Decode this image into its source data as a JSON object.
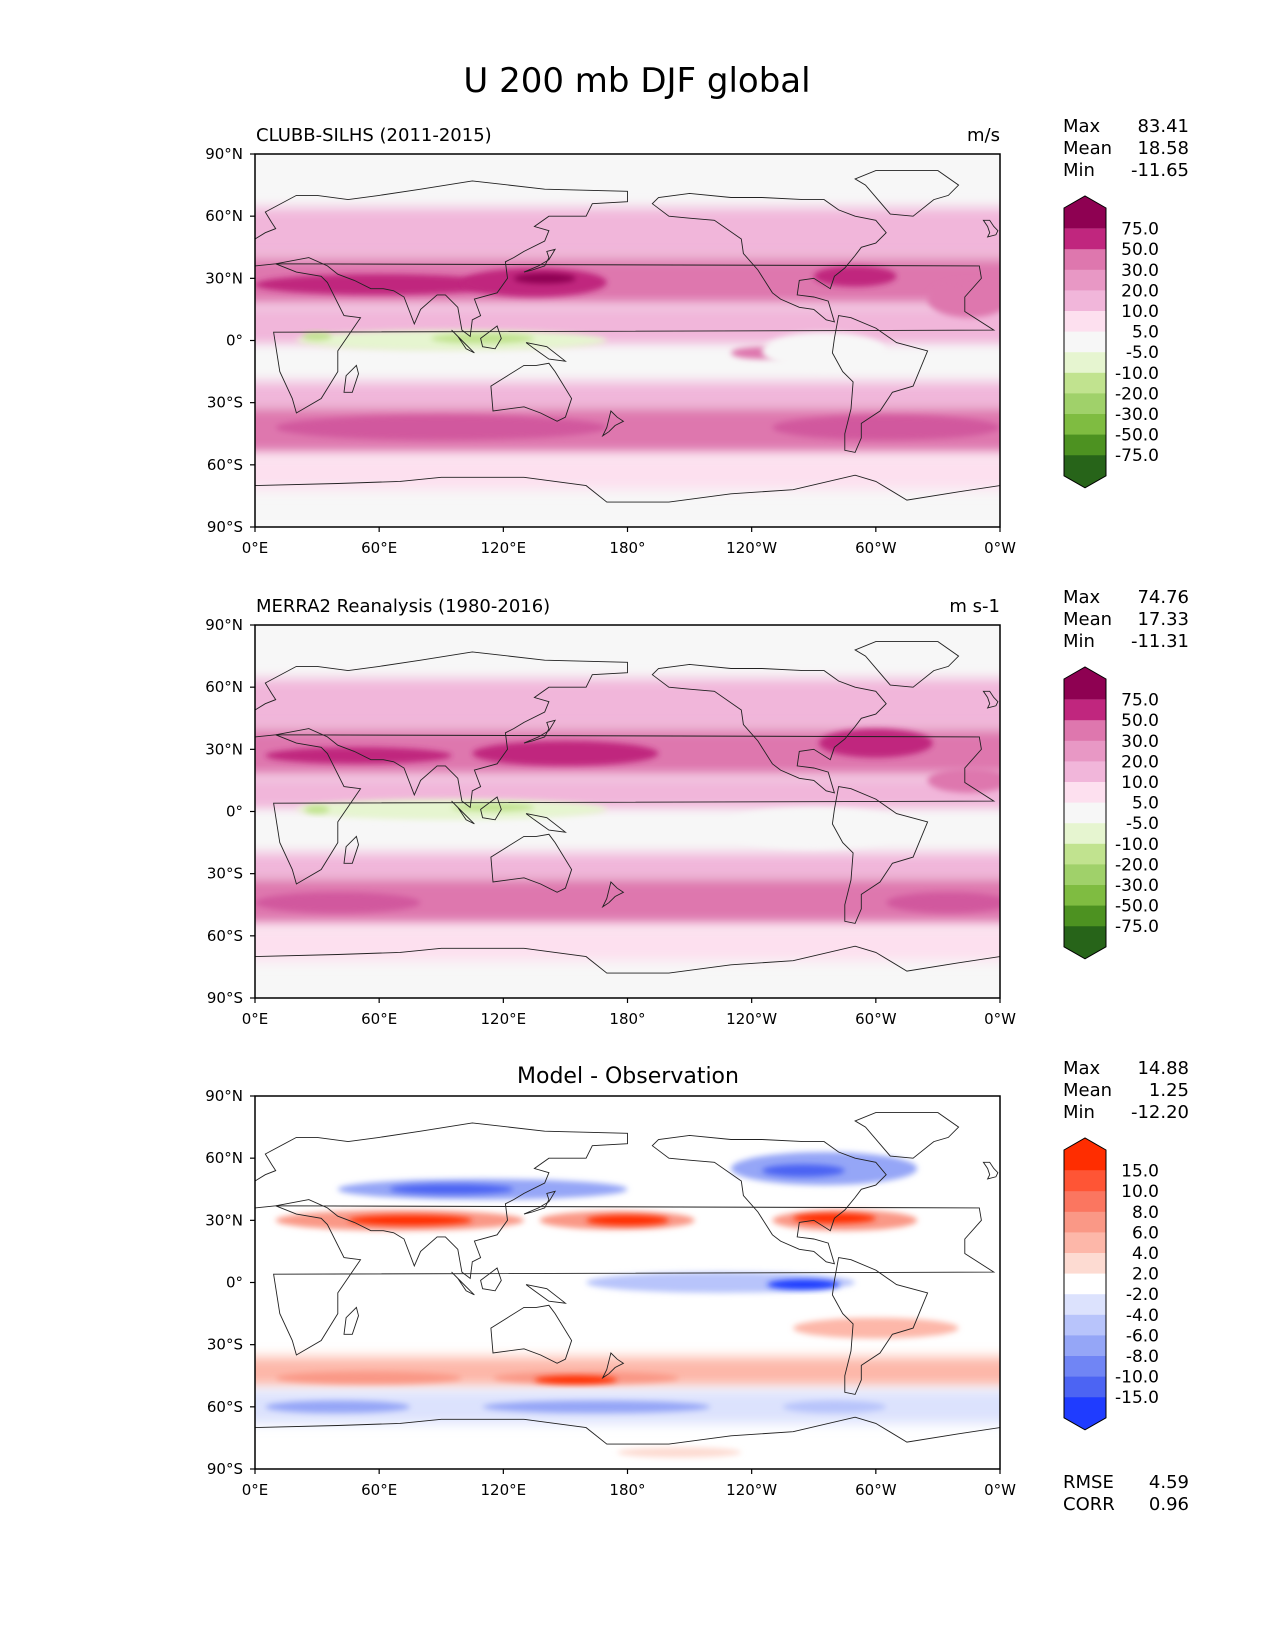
{
  "figure_title": "U 200 mb DJF global",
  "chart_data": [
    {
      "type": "heatmap",
      "panel": "test",
      "title_left": "CLUBB-SILHS (2011-2015)",
      "title_right": "m/s",
      "stats": [
        {
          "label": "Max",
          "value": "83.41"
        },
        {
          "label": "Mean",
          "value": "18.58"
        },
        {
          "label": "Min",
          "value": "-11.65"
        }
      ],
      "colorbar": {
        "levels": [
          "75.0",
          "50.0",
          "30.0",
          "20.0",
          "10.0",
          "5.0",
          "-5.0",
          "-10.0",
          "-20.0",
          "-30.0",
          "-50.0",
          "-75.0"
        ],
        "colors": [
          "#8e0152",
          "#c0267e",
          "#de77ae",
          "#e898c5",
          "#f1b6da",
          "#fde0ef",
          "#f7f7f7",
          "#e6f5d0",
          "#c1e38f",
          "#a0d16a",
          "#7fbc41",
          "#4d9221",
          "#276419"
        ]
      },
      "x_ticks": [
        "0°E",
        "60°E",
        "120°E",
        "180°",
        "120°W",
        "60°W",
        "0°W"
      ],
      "y_ticks": [
        "90°N",
        "60°N",
        "30°N",
        "0°",
        "30°S",
        "60°S",
        "90°S"
      ],
      "xlim": [
        0,
        360
      ],
      "ylim": [
        -90,
        90
      ],
      "background": "#f7f7f7",
      "bands": [
        {
          "lat": [
            60,
            90
          ],
          "color": "#f7f7f7"
        },
        {
          "lat": [
            40,
            64
          ],
          "color": "#f1b6da"
        },
        {
          "lat": [
            17,
            40
          ],
          "color": "#de77ae"
        },
        {
          "lat": [
            -3,
            17
          ],
          "color": "#f1b6da"
        },
        {
          "lat": [
            -20,
            -3
          ],
          "color": "#f7f7f7"
        },
        {
          "lat": [
            -32,
            -20
          ],
          "color": "#f1b6da"
        },
        {
          "lat": [
            -55,
            -32
          ],
          "color": "#de77ae"
        },
        {
          "lat": [
            -72,
            -55
          ],
          "color": "#fde0ef"
        }
      ],
      "blobs": [
        {
          "lon": 60,
          "lat": 27,
          "w": 120,
          "h": 10,
          "color": "#c0267e"
        },
        {
          "lon": 135,
          "lat": 28,
          "w": 70,
          "h": 14,
          "color": "#c0267e"
        },
        {
          "lon": 140,
          "lat": 30,
          "w": 30,
          "h": 5,
          "color": "#8e0152"
        },
        {
          "lon": 290,
          "lat": 31,
          "w": 40,
          "h": 10,
          "color": "#c0267e"
        },
        {
          "lon": 345,
          "lat": 20,
          "w": 40,
          "h": 18,
          "color": "#de77ae"
        },
        {
          "lon": 95,
          "lat": 0,
          "w": 150,
          "h": 10,
          "color": "#e6f5d0"
        },
        {
          "lon": 110,
          "lat": 1,
          "w": 50,
          "h": 5,
          "color": "#c1e38f"
        },
        {
          "lon": 30,
          "lat": 2,
          "w": 14,
          "h": 4,
          "color": "#c1e38f"
        },
        {
          "lon": 245,
          "lat": -6,
          "w": 30,
          "h": 6,
          "color": "#de77ae"
        },
        {
          "lon": 275,
          "lat": -5,
          "w": 60,
          "h": 18,
          "color": "#f7f7f7"
        },
        {
          "lon": 90,
          "lat": -42,
          "w": 160,
          "h": 12,
          "color": "#d1589e"
        },
        {
          "lon": 305,
          "lat": -42,
          "w": 110,
          "h": 12,
          "color": "#d1589e"
        }
      ]
    },
    {
      "type": "heatmap",
      "panel": "reference",
      "title_left": "MERRA2 Reanalysis (1980-2016)",
      "title_right": "m s-1",
      "stats": [
        {
          "label": "Max",
          "value": "74.76"
        },
        {
          "label": "Mean",
          "value": "17.33"
        },
        {
          "label": "Min",
          "value": "-11.31"
        }
      ],
      "colorbar": {
        "levels": [
          "75.0",
          "50.0",
          "30.0",
          "20.0",
          "10.0",
          "5.0",
          "-5.0",
          "-10.0",
          "-20.0",
          "-30.0",
          "-50.0",
          "-75.0"
        ],
        "colors": [
          "#8e0152",
          "#c0267e",
          "#de77ae",
          "#e898c5",
          "#f1b6da",
          "#fde0ef",
          "#f7f7f7",
          "#e6f5d0",
          "#c1e38f",
          "#a0d16a",
          "#7fbc41",
          "#4d9221",
          "#276419"
        ]
      },
      "x_ticks": [
        "0°E",
        "60°E",
        "120°E",
        "180°",
        "120°W",
        "60°W",
        "0°W"
      ],
      "y_ticks": [
        "90°N",
        "60°N",
        "30°N",
        "0°",
        "30°S",
        "60°S",
        "90°S"
      ],
      "xlim": [
        0,
        360
      ],
      "ylim": [
        -90,
        90
      ],
      "background": "#f7f7f7",
      "bands": [
        {
          "lat": [
            62,
            90
          ],
          "color": "#f7f7f7"
        },
        {
          "lat": [
            40,
            64
          ],
          "color": "#f1b6da"
        },
        {
          "lat": [
            17,
            40
          ],
          "color": "#de77ae"
        },
        {
          "lat": [
            0,
            17
          ],
          "color": "#f1b6da"
        },
        {
          "lat": [
            -20,
            0
          ],
          "color": "#f7f7f7"
        },
        {
          "lat": [
            -32,
            -20
          ],
          "color": "#f1b6da"
        },
        {
          "lat": [
            -55,
            -32
          ],
          "color": "#de77ae"
        },
        {
          "lat": [
            -72,
            -55
          ],
          "color": "#fde0ef"
        }
      ],
      "blobs": [
        {
          "lon": 50,
          "lat": 27,
          "w": 90,
          "h": 8,
          "color": "#c0267e"
        },
        {
          "lon": 150,
          "lat": 28,
          "w": 90,
          "h": 12,
          "color": "#c0267e"
        },
        {
          "lon": 300,
          "lat": 33,
          "w": 55,
          "h": 14,
          "color": "#c0267e"
        },
        {
          "lon": 345,
          "lat": 15,
          "w": 40,
          "h": 12,
          "color": "#de77ae"
        },
        {
          "lon": 95,
          "lat": 1,
          "w": 150,
          "h": 10,
          "color": "#e6f5d0"
        },
        {
          "lon": 115,
          "lat": 2,
          "w": 40,
          "h": 4,
          "color": "#c1e38f"
        },
        {
          "lon": 30,
          "lat": 1,
          "w": 12,
          "h": 4,
          "color": "#c1e38f"
        },
        {
          "lon": 270,
          "lat": -8,
          "w": 90,
          "h": 20,
          "color": "#f7f7f7"
        },
        {
          "lon": 40,
          "lat": -44,
          "w": 80,
          "h": 10,
          "color": "#d1589e"
        },
        {
          "lon": 335,
          "lat": -44,
          "w": 60,
          "h": 10,
          "color": "#d1589e"
        }
      ]
    },
    {
      "type": "heatmap",
      "panel": "difference",
      "title_center": "Model - Observation",
      "stats": [
        {
          "label": "Max",
          "value": "14.88"
        },
        {
          "label": "Mean",
          "value": "1.25"
        },
        {
          "label": "Min",
          "value": "-12.20"
        }
      ],
      "extra_stats": [
        {
          "label": "RMSE",
          "value": "4.59"
        },
        {
          "label": "CORR",
          "value": "0.96"
        }
      ],
      "colorbar": {
        "levels": [
          "15.0",
          "10.0",
          "8.0",
          "6.0",
          "4.0",
          "2.0",
          "-2.0",
          "-4.0",
          "-6.0",
          "-8.0",
          "-10.0",
          "-15.0"
        ],
        "colors": [
          "#ff2d00",
          "#ff5535",
          "#fb7660",
          "#fa9886",
          "#fdb7a9",
          "#fddbd2",
          "#ffffff",
          "#dce2fd",
          "#b8c4fb",
          "#95a6f7",
          "#7085f5",
          "#4c64f3",
          "#1f3cff"
        ]
      },
      "x_ticks": [
        "0°E",
        "60°E",
        "120°E",
        "180°",
        "120°W",
        "60°W",
        "0°W"
      ],
      "y_ticks": [
        "90°N",
        "60°N",
        "30°N",
        "0°",
        "30°S",
        "60°S",
        "90°S"
      ],
      "xlim": [
        0,
        360
      ],
      "ylim": [
        -90,
        90
      ],
      "background": "#ffffff",
      "bands": [
        {
          "lat": [
            -50,
            -36
          ],
          "color": "#fdb7a9"
        },
        {
          "lat": [
            -68,
            -52
          ],
          "color": "#dce2fd"
        }
      ],
      "blobs": [
        {
          "lon": 110,
          "lat": 45,
          "w": 140,
          "h": 10,
          "color": "#95a6f7"
        },
        {
          "lon": 95,
          "lat": 45,
          "w": 60,
          "h": 5,
          "color": "#4c64f3"
        },
        {
          "lon": 275,
          "lat": 55,
          "w": 90,
          "h": 16,
          "color": "#95a6f7"
        },
        {
          "lon": 265,
          "lat": 54,
          "w": 40,
          "h": 6,
          "color": "#4c64f3"
        },
        {
          "lon": 70,
          "lat": 30,
          "w": 120,
          "h": 10,
          "color": "#fa9886"
        },
        {
          "lon": 75,
          "lat": 30,
          "w": 60,
          "h": 5,
          "color": "#ff2d00"
        },
        {
          "lon": 175,
          "lat": 30,
          "w": 75,
          "h": 9,
          "color": "#fa9886"
        },
        {
          "lon": 180,
          "lat": 30,
          "w": 40,
          "h": 5,
          "color": "#ff2d00"
        },
        {
          "lon": 285,
          "lat": 30,
          "w": 70,
          "h": 10,
          "color": "#fa9886"
        },
        {
          "lon": 280,
          "lat": 31,
          "w": 40,
          "h": 5,
          "color": "#ff2d00"
        },
        {
          "lon": 225,
          "lat": 0,
          "w": 130,
          "h": 10,
          "color": "#b8c4fb"
        },
        {
          "lon": 265,
          "lat": -1,
          "w": 35,
          "h": 5,
          "color": "#1f3cff"
        },
        {
          "lon": 300,
          "lat": -22,
          "w": 80,
          "h": 10,
          "color": "#fdb7a9"
        },
        {
          "lon": 55,
          "lat": -46,
          "w": 90,
          "h": 6,
          "color": "#fa9886"
        },
        {
          "lon": 160,
          "lat": -46,
          "w": 90,
          "h": 6,
          "color": "#fa9886"
        },
        {
          "lon": 155,
          "lat": -47,
          "w": 40,
          "h": 4,
          "color": "#ff2d00"
        },
        {
          "lon": 40,
          "lat": -60,
          "w": 70,
          "h": 6,
          "color": "#95a6f7"
        },
        {
          "lon": 165,
          "lat": -60,
          "w": 110,
          "h": 6,
          "color": "#95a6f7"
        },
        {
          "lon": 280,
          "lat": -60,
          "w": 50,
          "h": 6,
          "color": "#b8c4fb"
        },
        {
          "lon": 205,
          "lat": -82,
          "w": 60,
          "h": 5,
          "color": "#fddbd2"
        }
      ]
    }
  ]
}
